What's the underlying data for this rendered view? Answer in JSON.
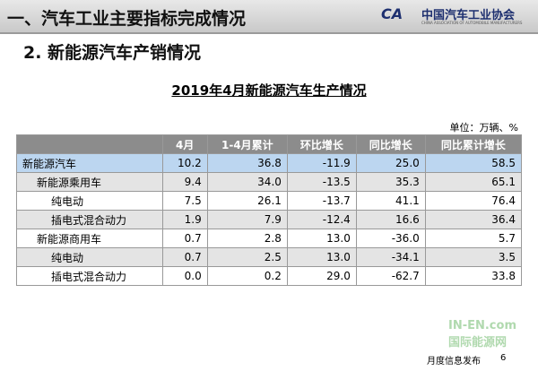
{
  "header": {
    "title": "一、汽车工业主要指标完成情况",
    "logo": "中国汽车工业协会",
    "logo_en": "CHINA ASSOCIATION OF AUTOMOBILE MANUFACTURERS"
  },
  "subtitle": "2. 新能源汽车产销情况",
  "table": {
    "title": "2019年4月新能源汽车生产情况",
    "unit": "单位：万辆、%",
    "columns": [
      "",
      "4月",
      "1-4月累计",
      "环比增长",
      "同比增长",
      "同比累计增长"
    ],
    "rows": [
      [
        "新能源汽车",
        "10.2",
        "36.8",
        "-11.9",
        "25.0",
        "58.5"
      ],
      [
        "新能源乘用车",
        "9.4",
        "34.0",
        "-13.5",
        "35.3",
        "65.1"
      ],
      [
        "纯电动",
        "7.5",
        "26.1",
        "-13.7",
        "41.1",
        "76.4"
      ],
      [
        "插电式混合动力",
        "1.9",
        "7.9",
        "-12.4",
        "16.6",
        "36.4"
      ],
      [
        "新能源商用车",
        "0.7",
        "2.8",
        "13.0",
        "-36.0",
        "5.7"
      ],
      [
        "纯电动",
        "0.7",
        "2.5",
        "13.0",
        "-34.1",
        "3.5"
      ],
      [
        "插电式混合动力",
        "0.0",
        "0.2",
        "29.0",
        "-62.7",
        "33.8"
      ]
    ]
  },
  "footer": {
    "text": "月度信息发布",
    "page": "6"
  },
  "watermark": {
    "url": "IN-EN.com",
    "name": "国际能源网"
  }
}
